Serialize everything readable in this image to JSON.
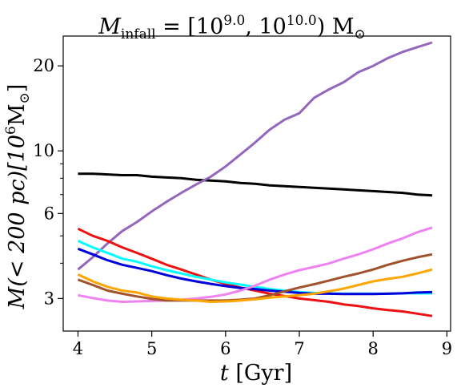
{
  "chart_data": {
    "type": "line",
    "title": "M_infall = [10^9.0, 10^10.0) M_⊙",
    "title_parts": {
      "M": "M",
      "sub": "infall",
      "eq": " = [10",
      "exp1": "9.0",
      "mid": ", 10",
      "exp2": "10.0",
      "close": ") M",
      "sun": "⊙"
    },
    "xlabel": "t [Gyr]",
    "xlabel_parts": {
      "var": "t",
      "unit": " [Gyr]"
    },
    "ylabel": "M(< 200 pc)[10^6 M_⊙]",
    "ylabel_parts": {
      "a": "M(< 200 pc)[10",
      "exp": "6",
      "b": "M",
      "sun": "⊙",
      "c": "]"
    },
    "xlim": [
      3.8,
      9.05
    ],
    "ylim": [
      2.3,
      25.5
    ],
    "yscale": "log",
    "xticks": [
      4,
      5,
      6,
      7,
      8,
      9
    ],
    "xtick_labels": [
      "4",
      "5",
      "6",
      "7",
      "8",
      "9"
    ],
    "yticks": [
      3,
      6,
      10,
      20
    ],
    "ytick_labels": [
      "3",
      "6",
      "10",
      "20"
    ],
    "yminor_ticks": [
      4,
      5,
      7,
      8,
      9
    ],
    "grid": false,
    "legend": "none",
    "series": [
      {
        "color": "#000000",
        "x": [
          4.0,
          4.2,
          4.4,
          4.6,
          4.8,
          5.0,
          5.2,
          5.4,
          5.6,
          5.8,
          6.0,
          6.2,
          6.4,
          6.6,
          6.8,
          7.0,
          7.2,
          7.4,
          7.6,
          7.8,
          8.0,
          8.2,
          8.4,
          8.6,
          8.8
        ],
        "y": [
          8.3,
          8.3,
          8.25,
          8.2,
          8.2,
          8.1,
          8.05,
          8.0,
          7.9,
          7.85,
          7.8,
          7.7,
          7.65,
          7.55,
          7.5,
          7.45,
          7.4,
          7.35,
          7.3,
          7.25,
          7.2,
          7.15,
          7.1,
          7.0,
          6.95
        ]
      },
      {
        "color": "#9467bd",
        "x": [
          4.0,
          4.2,
          4.4,
          4.6,
          4.8,
          5.0,
          5.2,
          5.4,
          5.6,
          5.8,
          6.0,
          6.2,
          6.4,
          6.6,
          6.8,
          7.0,
          7.2,
          7.4,
          7.6,
          7.8,
          8.0,
          8.2,
          8.4,
          8.6,
          8.8
        ],
        "y": [
          3.8,
          4.2,
          4.7,
          5.2,
          5.6,
          6.1,
          6.6,
          7.1,
          7.6,
          8.1,
          8.8,
          9.7,
          10.7,
          11.9,
          12.9,
          13.6,
          15.4,
          16.5,
          17.5,
          19.0,
          20.0,
          21.3,
          22.4,
          23.3,
          24.2
        ]
      },
      {
        "color": "#ee1111",
        "x": [
          4.0,
          4.2,
          4.4,
          4.6,
          4.8,
          5.0,
          5.2,
          5.4,
          5.6,
          5.8,
          6.0,
          6.2,
          6.4,
          6.6,
          6.8,
          7.0,
          7.2,
          7.4,
          7.6,
          7.8,
          8.0,
          8.2,
          8.4,
          8.6,
          8.8
        ],
        "y": [
          5.3,
          5.0,
          4.8,
          4.55,
          4.35,
          4.15,
          3.95,
          3.8,
          3.65,
          3.5,
          3.38,
          3.28,
          3.2,
          3.12,
          3.06,
          3.0,
          2.96,
          2.92,
          2.86,
          2.82,
          2.77,
          2.73,
          2.7,
          2.65,
          2.6
        ]
      },
      {
        "color": "#00ffff",
        "x": [
          4.0,
          4.2,
          4.4,
          4.6,
          4.8,
          5.0,
          5.2,
          5.4,
          5.6,
          5.8,
          6.0,
          6.2,
          6.4,
          6.6,
          6.8,
          7.0,
          7.2,
          7.4,
          7.6,
          7.8,
          8.0,
          8.2,
          8.4,
          8.6,
          8.8
        ],
        "y": [
          4.8,
          4.55,
          4.35,
          4.15,
          4.05,
          3.9,
          3.78,
          3.68,
          3.58,
          3.5,
          3.42,
          3.36,
          3.3,
          3.24,
          3.2,
          3.16,
          3.14,
          3.13,
          3.12,
          3.12,
          3.12,
          3.12,
          3.13,
          3.13,
          3.13
        ]
      },
      {
        "color": "#0000dd",
        "x": [
          4.0,
          4.2,
          4.4,
          4.6,
          4.8,
          5.0,
          5.2,
          5.4,
          5.6,
          5.8,
          6.0,
          6.2,
          6.4,
          6.6,
          6.8,
          7.0,
          7.2,
          7.4,
          7.6,
          7.8,
          8.0,
          8.2,
          8.4,
          8.6,
          8.8
        ],
        "y": [
          4.5,
          4.3,
          4.1,
          3.95,
          3.85,
          3.75,
          3.63,
          3.53,
          3.45,
          3.38,
          3.32,
          3.27,
          3.24,
          3.2,
          3.17,
          3.14,
          3.12,
          3.12,
          3.11,
          3.11,
          3.11,
          3.12,
          3.13,
          3.15,
          3.16
        ]
      },
      {
        "color": "#ee82ee",
        "x": [
          4.0,
          4.2,
          4.4,
          4.6,
          4.8,
          5.0,
          5.2,
          5.4,
          5.6,
          5.8,
          6.0,
          6.2,
          6.4,
          6.6,
          6.8,
          7.0,
          7.2,
          7.4,
          7.6,
          7.8,
          8.0,
          8.2,
          8.4,
          8.6,
          8.8
        ],
        "y": [
          3.08,
          3.01,
          2.95,
          2.92,
          2.93,
          2.94,
          2.95,
          2.97,
          3.0,
          3.04,
          3.1,
          3.2,
          3.33,
          3.5,
          3.65,
          3.78,
          3.88,
          3.99,
          4.15,
          4.3,
          4.48,
          4.7,
          4.9,
          5.15,
          5.35
        ]
      },
      {
        "color": "#a0522d",
        "x": [
          4.0,
          4.2,
          4.4,
          4.6,
          4.8,
          5.0,
          5.2,
          5.4,
          5.6,
          5.8,
          6.0,
          6.2,
          6.4,
          6.6,
          6.8,
          7.0,
          7.2,
          7.4,
          7.6,
          7.8,
          8.0,
          8.2,
          8.4,
          8.6,
          8.8
        ],
        "y": [
          3.5,
          3.35,
          3.2,
          3.12,
          3.05,
          2.99,
          2.95,
          2.95,
          2.95,
          2.95,
          2.95,
          2.97,
          3.0,
          3.08,
          3.18,
          3.28,
          3.37,
          3.47,
          3.58,
          3.68,
          3.8,
          3.95,
          4.08,
          4.2,
          4.3
        ]
      },
      {
        "color": "#ffa500",
        "x": [
          4.0,
          4.2,
          4.4,
          4.6,
          4.8,
          5.0,
          5.2,
          5.4,
          5.6,
          5.8,
          6.0,
          6.2,
          6.4,
          6.6,
          6.8,
          7.0,
          7.2,
          7.4,
          7.6,
          7.8,
          8.0,
          8.2,
          8.4,
          8.6,
          8.8
        ],
        "y": [
          3.65,
          3.45,
          3.3,
          3.2,
          3.15,
          3.05,
          3.0,
          2.97,
          2.95,
          2.92,
          2.93,
          2.95,
          2.98,
          3.02,
          3.05,
          3.08,
          3.12,
          3.18,
          3.25,
          3.35,
          3.45,
          3.52,
          3.58,
          3.68,
          3.8
        ]
      }
    ]
  }
}
